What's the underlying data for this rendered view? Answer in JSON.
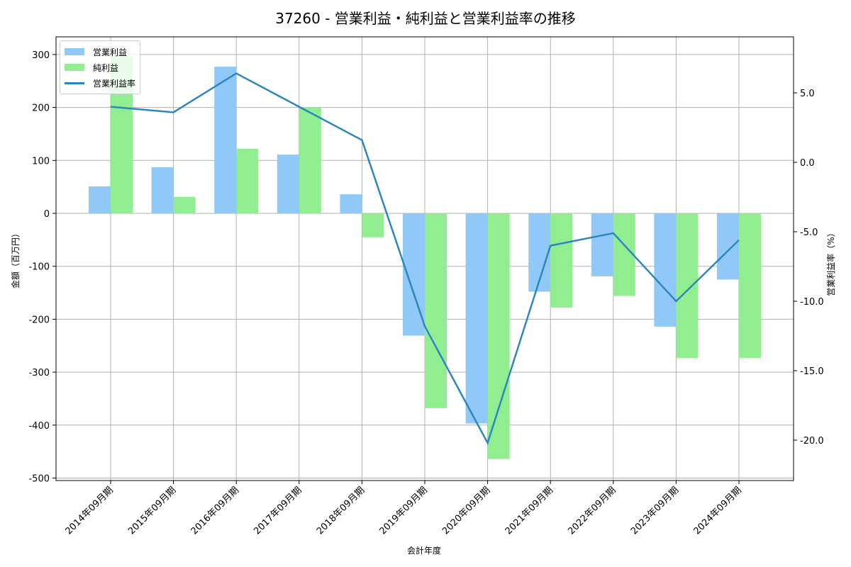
{
  "title": "37260 - 営業利益・純利益と営業利益率の推移",
  "legend": {
    "items": [
      {
        "label": "営業利益",
        "color": "#90c9f7",
        "kind": "bar"
      },
      {
        "label": "純利益",
        "color": "#90ee90",
        "kind": "bar"
      },
      {
        "label": "営業利益率",
        "color": "#2e86c1",
        "kind": "line"
      }
    ]
  },
  "axes": {
    "xlabel": "会計年度",
    "ylabel_left": "金額（百万円）",
    "ylabel_right": "営業利益率（%）",
    "left_ticks": [
      "300",
      "200",
      "100",
      "0",
      "-100",
      "-200",
      "-300",
      "-400",
      "-500"
    ],
    "right_ticks": [
      "5.0",
      "0.0",
      "-5.0",
      "-10.0",
      "-15.0",
      "-20.0"
    ]
  },
  "chart_data": {
    "type": "bar",
    "title": "37260 - 営業利益・純利益と営業利益率の推移",
    "xlabel": "会計年度",
    "ylabel": "金額（百万円）",
    "ylabel_right": "営業利益率（%）",
    "categories": [
      "2014年09月期",
      "2015年09月期",
      "2016年09月期",
      "2017年09月期",
      "2018年09月期",
      "2019年09月期",
      "2020年09月期",
      "2021年09月期",
      "2022年09月期",
      "2023年09月期",
      "2024年09月期"
    ],
    "series": [
      {
        "name": "営業利益",
        "type": "bar",
        "axis": "left",
        "color": "#90c9f7",
        "values": [
          51,
          87,
          277,
          111,
          36,
          -231,
          -397,
          -148,
          -119,
          -214,
          -125
        ]
      },
      {
        "name": "純利益",
        "type": "bar",
        "axis": "left",
        "color": "#90ee90",
        "values": [
          296,
          31,
          122,
          200,
          -45,
          -368,
          -464,
          -178,
          -156,
          -273,
          -273
        ]
      },
      {
        "name": "営業利益率",
        "type": "line",
        "axis": "right",
        "color": "#2e86c1",
        "values": [
          4.0,
          3.6,
          6.4,
          4.0,
          1.6,
          -11.8,
          -20.2,
          -6.0,
          -5.1,
          -10.0,
          -5.6
        ]
      }
    ],
    "ylim": [
      -505,
      335
    ],
    "ylim_right": [
      -22.8,
      8.9
    ],
    "grid": true,
    "legend_position": "upper left"
  }
}
